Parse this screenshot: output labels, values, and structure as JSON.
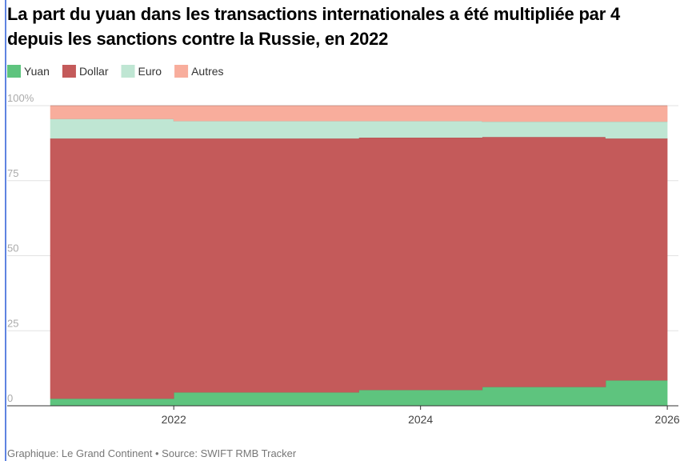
{
  "chart_data": {
    "type": "stacked-area",
    "title": "La part du yuan dans les transactions internationales a été multipliée par 4 depuis les sanctions contre la Russie, en 2022",
    "footer": "Graphique: Le Grand Continent • Source: SWIFT RMB Tracker",
    "x": [
      2021,
      2022,
      2022,
      2023.5,
      2023.5,
      2024.5,
      2024.5,
      2025.5,
      2025.5,
      2026
    ],
    "series": [
      {
        "name": "Yuan",
        "color": "#5ec47e",
        "values": [
          2.4,
          2.4,
          4.5,
          4.5,
          5.3,
          5.3,
          6.3,
          6.3,
          8.5,
          8.5
        ]
      },
      {
        "name": "Dollar",
        "color": "#c45a5a",
        "values": [
          86.7,
          86.7,
          84.6,
          84.6,
          84.1,
          84.1,
          83.3,
          83.3,
          80.6,
          80.6
        ]
      },
      {
        "name": "Euro",
        "color": "#bfe6d3",
        "values": [
          6.5,
          6.5,
          5.8,
          5.8,
          5.5,
          5.5,
          5.1,
          5.1,
          5.6,
          5.6
        ]
      },
      {
        "name": "Autres",
        "color": "#f8ad9c",
        "values": [
          4.4,
          4.4,
          5.1,
          5.1,
          5.1,
          5.1,
          5.3,
          5.3,
          5.3,
          5.3
        ]
      }
    ],
    "xlim": [
      2020.65,
      2026.09
    ],
    "xticks": [
      2022,
      2024,
      2026
    ],
    "ylim": [
      0,
      100
    ],
    "yticks": [
      0,
      25,
      50,
      75,
      {
        "value": 100,
        "label": "100%"
      }
    ],
    "grid": true
  }
}
